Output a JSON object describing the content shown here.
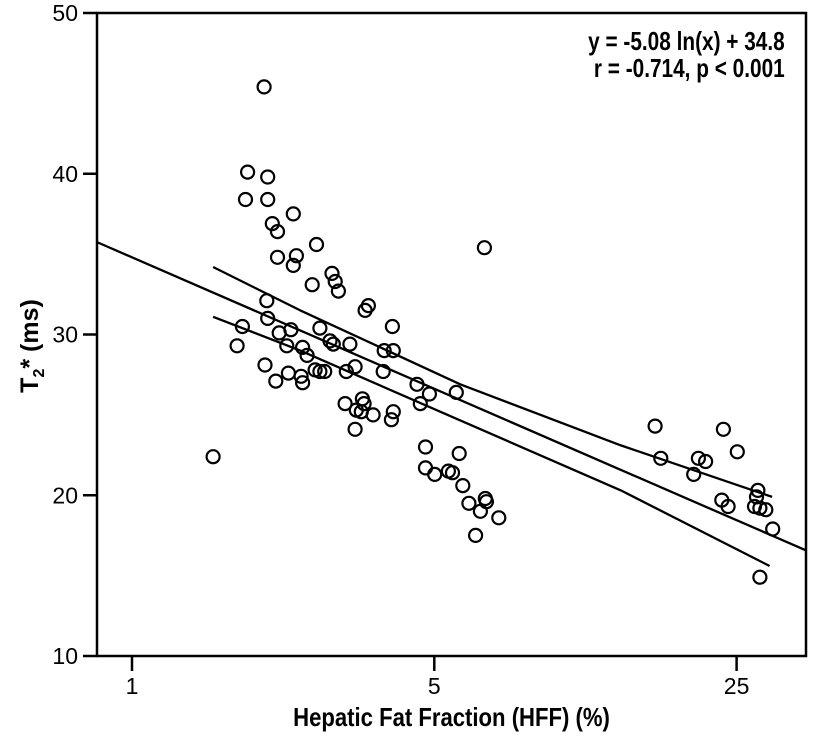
{
  "chart_data": {
    "type": "scatter",
    "title": "",
    "xlabel": "Hepatic Fat Fraction (HFF) (%)",
    "ylabel": "T2* (ms)",
    "ylabel_parts": {
      "prefix": "T",
      "sub": "2",
      "suffix": "* (ms)"
    },
    "x_scale": "log",
    "x_ticks": [
      "1",
      "5",
      "25"
    ],
    "x_tick_values": [
      1,
      5,
      25
    ],
    "x_range": [
      0.83,
      36.2
    ],
    "y_scale": "linear",
    "y_ticks": [
      "10",
      "20",
      "30",
      "40",
      "50"
    ],
    "y_tick_values": [
      10,
      20,
      30,
      40,
      50
    ],
    "y_range": [
      10,
      50
    ],
    "grid": false,
    "annotation": {
      "equation": "y = -5.08 ln(x) + 34.8",
      "stats": "r = -0.714, p < 0.001"
    },
    "regression": {
      "model": "y = a*ln(x) + b",
      "a": -5.08,
      "b": 34.8,
      "x_start": 0.83,
      "x_end": 36.2
    },
    "ci_upper": [
      [
        1.54,
        34.2
      ],
      [
        2.45,
        31.5
      ],
      [
        5.74,
        26.9
      ],
      [
        13.5,
        23.1
      ],
      [
        30.2,
        19.9
      ]
    ],
    "ci_lower": [
      [
        1.54,
        31.1
      ],
      [
        2.45,
        29.0
      ],
      [
        5.16,
        25.2
      ],
      [
        13.5,
        20.3
      ],
      [
        29.8,
        15.6
      ]
    ],
    "marker": {
      "shape": "open-circle",
      "radius": 6.5,
      "stroke_width": 2.2,
      "color": "#000000"
    },
    "colors": {
      "foreground": "#000000",
      "background": "#ffffff"
    },
    "points": [
      [
        2.02,
        45.4
      ],
      [
        1.85,
        40.1
      ],
      [
        2.06,
        39.8
      ],
      [
        1.83,
        38.4
      ],
      [
        2.06,
        38.4
      ],
      [
        2.36,
        37.5
      ],
      [
        2.11,
        36.9
      ],
      [
        2.17,
        36.4
      ],
      [
        2.67,
        35.6
      ],
      [
        2.17,
        34.8
      ],
      [
        2.4,
        34.9
      ],
      [
        2.36,
        34.3
      ],
      [
        2.9,
        33.8
      ],
      [
        2.95,
        33.3
      ],
      [
        3.0,
        32.7
      ],
      [
        2.61,
        33.1
      ],
      [
        2.05,
        32.1
      ],
      [
        3.52,
        31.8
      ],
      [
        3.46,
        31.5
      ],
      [
        4.0,
        30.5
      ],
      [
        1.8,
        30.5
      ],
      [
        2.06,
        31.0
      ],
      [
        6.53,
        35.4
      ],
      [
        1.75,
        29.3
      ],
      [
        2.19,
        30.1
      ],
      [
        2.33,
        30.3
      ],
      [
        2.28,
        29.3
      ],
      [
        2.72,
        30.4
      ],
      [
        2.87,
        29.6
      ],
      [
        2.92,
        29.4
      ],
      [
        3.19,
        29.4
      ],
      [
        2.48,
        29.2
      ],
      [
        2.54,
        28.7
      ],
      [
        2.03,
        28.1
      ],
      [
        2.15,
        27.1
      ],
      [
        2.3,
        27.6
      ],
      [
        2.46,
        27.4
      ],
      [
        2.48,
        27.0
      ],
      [
        2.65,
        27.8
      ],
      [
        2.72,
        27.7
      ],
      [
        2.79,
        27.7
      ],
      [
        3.13,
        27.7
      ],
      [
        3.28,
        28.0
      ],
      [
        3.83,
        29.0
      ],
      [
        4.02,
        29.0
      ],
      [
        3.81,
        27.7
      ],
      [
        4.56,
        26.9
      ],
      [
        4.87,
        26.3
      ],
      [
        4.64,
        25.7
      ],
      [
        3.11,
        25.7
      ],
      [
        3.41,
        26.0
      ],
      [
        3.44,
        25.7
      ],
      [
        3.3,
        25.3
      ],
      [
        3.39,
        25.2
      ],
      [
        3.61,
        25.0
      ],
      [
        3.28,
        24.1
      ],
      [
        4.02,
        25.2
      ],
      [
        3.98,
        24.7
      ],
      [
        5.62,
        26.4
      ],
      [
        1.54,
        22.4
      ],
      [
        4.77,
        23.0
      ],
      [
        5.71,
        22.6
      ],
      [
        4.77,
        21.7
      ],
      [
        5.01,
        21.3
      ],
      [
        5.39,
        21.5
      ],
      [
        5.51,
        21.4
      ],
      [
        5.82,
        20.6
      ],
      [
        6.01,
        19.5
      ],
      [
        6.56,
        19.8
      ],
      [
        6.6,
        19.6
      ],
      [
        6.39,
        19.0
      ],
      [
        7.05,
        18.6
      ],
      [
        6.23,
        17.5
      ],
      [
        16.2,
        24.3
      ],
      [
        16.7,
        22.3
      ],
      [
        20.4,
        22.3
      ],
      [
        21.2,
        22.1
      ],
      [
        19.9,
        21.3
      ],
      [
        23.3,
        24.1
      ],
      [
        25.1,
        22.7
      ],
      [
        23.1,
        19.7
      ],
      [
        23.9,
        19.3
      ],
      [
        28.0,
        20.3
      ],
      [
        27.8,
        19.9
      ],
      [
        27.5,
        19.3
      ],
      [
        28.3,
        19.2
      ],
      [
        29.2,
        19.1
      ],
      [
        30.3,
        17.9
      ],
      [
        28.3,
        14.9
      ]
    ]
  }
}
